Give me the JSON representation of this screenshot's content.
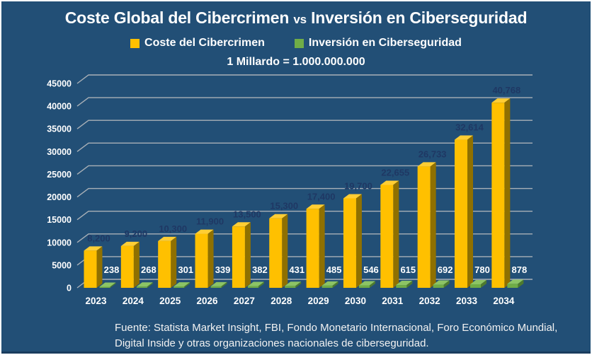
{
  "slide": {
    "title": {
      "part1": "Coste Global del Cibercrimen",
      "separator": "vs",
      "part2": "Inversión en  Ciberseguridad"
    },
    "subtitle": "1 Millardo = 1.000.000.000",
    "footer_line1": "Fuente: Statista Market Insight, FBI, Fondo Monetario Internacional, Foro Económico Mundial,",
    "footer_line2": "Digital Inside y otras organizaciones nacionales de ciberseguridad."
  },
  "legend": [
    {
      "label": "Coste del Cibercrimen",
      "color": "#FFC000"
    },
    {
      "label": "Inversión en Ciberseguridad",
      "color": "#70AD47"
    }
  ],
  "colors": {
    "background": "#224F76",
    "bottom_accent": "#1A3C5E",
    "text_white": "#FFFFFF",
    "gridline": "#A9B0B7",
    "bar1_front": "#FFC000",
    "bar1_top": "#FFCE34",
    "bar1_side": "#8F7000",
    "bar1_label": "#1F3864",
    "bar2_front": "#6FAC46",
    "bar2_top": "#8CC465",
    "bar2_side": "#4D7A2E",
    "bar2_label": "#FFFFFF"
  },
  "chart_data": {
    "type": "bar",
    "style": "3d-clustered-column",
    "categories": [
      "2023",
      "2024",
      "2025",
      "2026",
      "2027",
      "2028",
      "2029",
      "2030",
      "2031",
      "2032",
      "2033",
      "2034"
    ],
    "series": [
      {
        "name": "Coste del Cibercrimen",
        "color": "#FFC000",
        "values": [
          8200,
          9200,
          10300,
          11900,
          13500,
          15300,
          17400,
          19700,
          22655,
          26733,
          32614,
          40768
        ],
        "data_labels": [
          "8,200",
          "9,200",
          "10,300",
          "11,900",
          "13,500",
          "15,300",
          "17,400",
          "19,700",
          "22,655",
          "26,733",
          "32,614",
          "40,768"
        ]
      },
      {
        "name": "Inversión en Ciberseguridad",
        "color": "#70AD47",
        "values": [
          238,
          268,
          301,
          339,
          382,
          431,
          485,
          546,
          615,
          692,
          780,
          878
        ],
        "data_labels": [
          "238",
          "268",
          "301",
          "339",
          "382",
          "431",
          "485",
          "546",
          "615",
          "692",
          "780",
          "878"
        ]
      }
    ],
    "title": "Coste Global del Cibercrimen vs Inversión en Ciberseguridad",
    "subtitle": "1 Millardo = 1.000.000.000",
    "xlabel": "",
    "ylabel": "",
    "ylim": [
      0,
      45000
    ],
    "ytick_step": 5000,
    "yticks": [
      "0",
      "5000",
      "10000",
      "15000",
      "20000",
      "25000",
      "30000",
      "35000",
      "40000",
      "45000"
    ],
    "grid": true,
    "legend_position": "top"
  }
}
